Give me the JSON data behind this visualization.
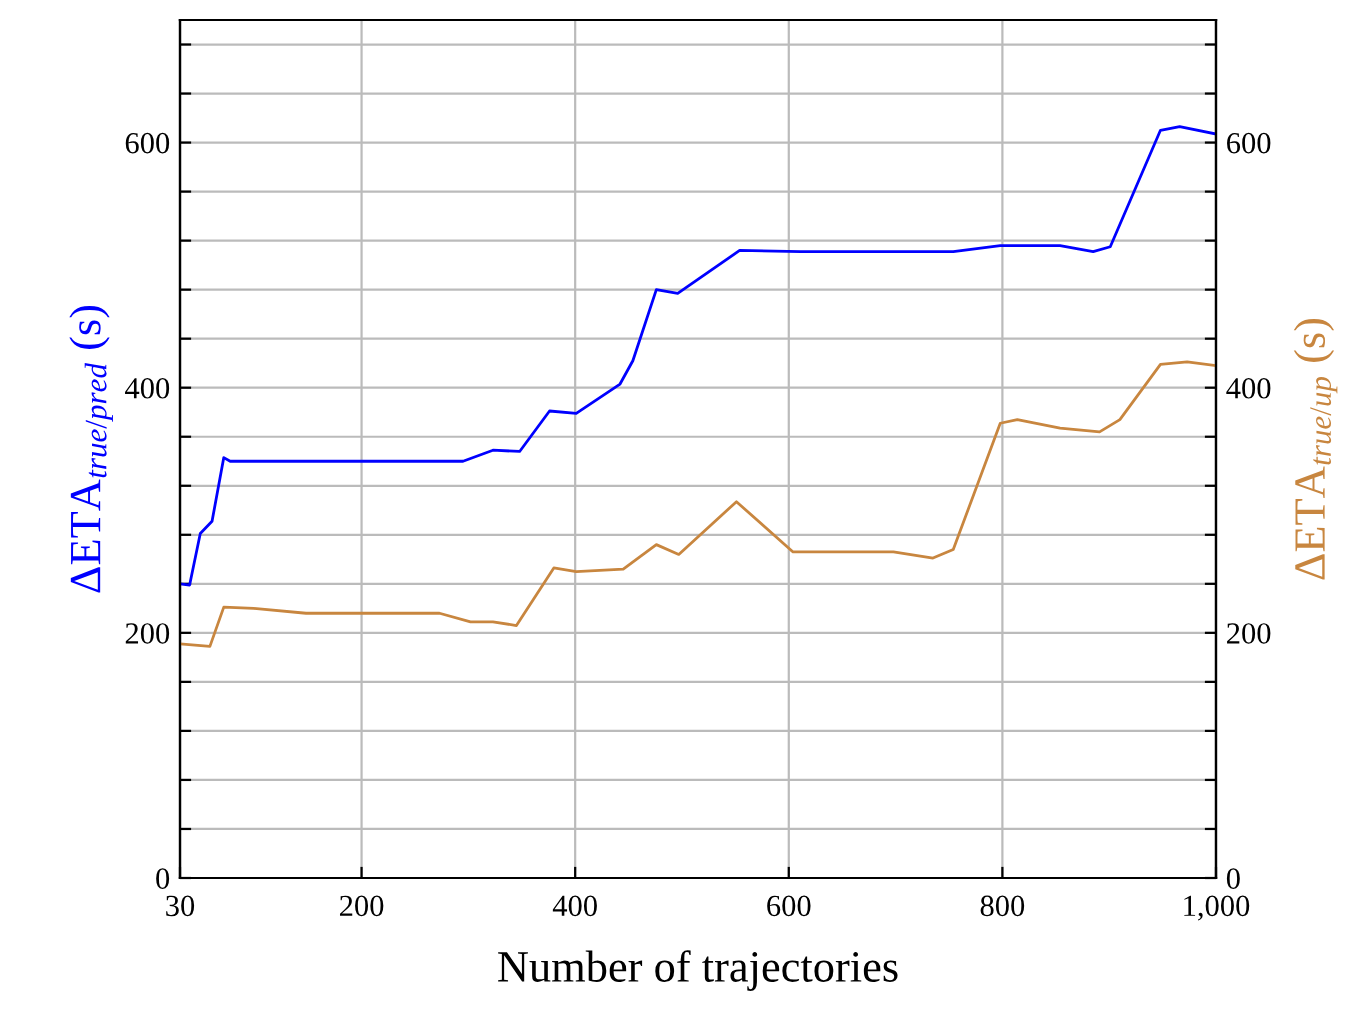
{
  "chart_data": {
    "type": "line",
    "xlabel": "Number of trajectories",
    "ylabel": "ΔETA$_{true/pred}$ (s)",
    "y2label": "ΔETA$_{true/up}$ (s)",
    "xlim": [
      30,
      1000
    ],
    "xticks": [
      30,
      200,
      400,
      600,
      800,
      {
        "value": 1000,
        "label": "1,000"
      }
    ],
    "ylim": [
      0,
      700
    ],
    "yticks": [
      0,
      {
        "value": 40,
        "label": null
      },
      {
        "value": 80,
        "label": null
      },
      {
        "value": 120,
        "label": null
      },
      {
        "value": 160,
        "label": null
      },
      200,
      {
        "value": 240,
        "label": null
      },
      {
        "value": 280,
        "label": null
      },
      {
        "value": 320,
        "label": null
      },
      {
        "value": 360,
        "label": null
      },
      400,
      {
        "value": 440,
        "label": null
      },
      {
        "value": 480,
        "label": null
      },
      {
        "value": 520,
        "label": null
      },
      {
        "value": 560,
        "label": null
      },
      600,
      {
        "value": 640,
        "label": null
      },
      {
        "value": 680,
        "label": null
      }
    ],
    "y2lim": [
      0,
      700
    ],
    "y2ticks": [
      0,
      {
        "value": 40,
        "label": null
      },
      {
        "value": 80,
        "label": null
      },
      {
        "value": 120,
        "label": null
      },
      {
        "value": 160,
        "label": null
      },
      200,
      {
        "value": 240,
        "label": null
      },
      {
        "value": 280,
        "label": null
      },
      {
        "value": 320,
        "label": null
      },
      {
        "value": 360,
        "label": null
      },
      400,
      {
        "value": 440,
        "label": null
      },
      {
        "value": 480,
        "label": null
      },
      {
        "value": 520,
        "label": null
      },
      {
        "value": 560,
        "label": null
      },
      600,
      {
        "value": 640,
        "label": null
      },
      {
        "value": 680,
        "label": null
      }
    ],
    "grid": true,
    "marker": "none",
    "line_style": "solid",
    "series": [
      {
        "color": "#0000ff",
        "x": [
          30,
          39,
          49,
          60,
          71,
          77,
          150,
          295,
          323,
          348,
          376,
          401,
          442,
          454,
          476,
          496,
          554,
          611,
          754,
          798,
          854,
          885,
          901,
          948,
          966,
          1000
        ],
        "values": [
          240,
          239,
          281,
          291,
          343,
          340,
          340,
          340,
          349,
          348,
          381,
          379,
          403,
          422,
          480,
          477,
          512,
          511,
          511,
          516,
          516,
          511,
          515,
          610,
          613,
          607
        ]
      },
      {
        "color": "#c8863f",
        "axis": "y2",
        "x": [
          30,
          58,
          71,
          99,
          148,
          273,
          302,
          323,
          345,
          380,
          401,
          445,
          476,
          497,
          551,
          604,
          623,
          698,
          735,
          754,
          798,
          814,
          854,
          891,
          910,
          948,
          973,
          1000
        ],
        "values": [
          191,
          189,
          221,
          220,
          216,
          216,
          209,
          209,
          206,
          253,
          250,
          252,
          272,
          264,
          307,
          266,
          266,
          266,
          261,
          268,
          371,
          374,
          367,
          364,
          374,
          419,
          421,
          418
        ]
      }
    ]
  }
}
